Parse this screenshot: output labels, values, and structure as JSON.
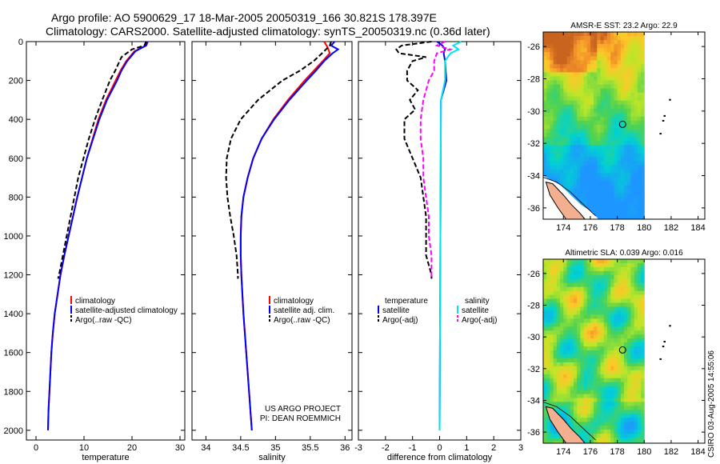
{
  "header": {
    "line1": "Argo profile: AO 5900629_17 18-Mar-2005 20050319_166 30.821S 178.397E",
    "line2": "Climatology: CARS2000. Satellite-adjusted climatology: synTS_20050319.nc (0.36d later)"
  },
  "colors": {
    "climatology": "#ff0000",
    "satellite": "#0000ff",
    "argo": "#000000",
    "temp_argo_adj": "#000000",
    "sal_satellite": "#00e5ee",
    "sal_argo_adj": "#ff00ff"
  },
  "chart_data": [
    {
      "type": "line",
      "name": "temperature-profile",
      "xlabel": "temperature",
      "xlim": [
        -2,
        31
      ],
      "ylim": [
        2050,
        0
      ],
      "xticks": [
        0,
        10,
        20,
        30
      ],
      "yticks": [
        0,
        200,
        400,
        600,
        800,
        1000,
        1200,
        1400,
        1600,
        1800,
        2000
      ],
      "legend": [
        "climatology",
        "satellite-adjusted climatology",
        "Argo(..raw -QC)"
      ],
      "series": [
        {
          "name": "climatology",
          "color": "#ff0000",
          "dash": "",
          "y": [
            0,
            20,
            50,
            100,
            150,
            200,
            300,
            400,
            500,
            600,
            700,
            800,
            900,
            1000,
            1100,
            1200,
            1300,
            1400,
            1500,
            1600,
            1700,
            1800,
            1900,
            2000
          ],
          "x": [
            23.3,
            23.0,
            20.5,
            18.8,
            17.6,
            16.6,
            14.6,
            13.0,
            11.8,
            10.6,
            9.6,
            8.6,
            7.7,
            6.8,
            5.9,
            5.1,
            4.5,
            3.9,
            3.5,
            3.2,
            3.0,
            2.8,
            2.6,
            2.5
          ]
        },
        {
          "name": "satellite-adjusted climatology",
          "color": "#0000ff",
          "dash": "",
          "y": [
            0,
            20,
            50,
            100,
            150,
            200,
            300,
            400,
            500,
            600,
            700,
            800,
            900,
            1000,
            1100,
            1200,
            1300,
            1400,
            1500,
            1600,
            1700,
            1800,
            1900,
            2000
          ],
          "x": [
            23.2,
            22.9,
            20.7,
            19.0,
            17.8,
            16.9,
            14.8,
            13.2,
            11.9,
            10.6,
            9.6,
            8.6,
            7.7,
            6.8,
            5.9,
            5.1,
            4.5,
            3.9,
            3.5,
            3.2,
            3.0,
            2.8,
            2.6,
            2.5
          ]
        },
        {
          "name": "Argo(..raw -QC)",
          "color": "#000000",
          "dash": "6,3",
          "y": [
            0,
            20,
            40,
            80,
            150,
            200,
            300,
            400,
            500,
            600,
            700,
            800,
            900,
            1000,
            1100,
            1200,
            1220
          ],
          "x": [
            22.9,
            22.6,
            20.0,
            17.8,
            16.5,
            15.4,
            13.8,
            12.3,
            11.0,
            9.9,
            8.8,
            8.0,
            7.2,
            6.4,
            5.6,
            4.8,
            4.6
          ]
        }
      ]
    },
    {
      "type": "line",
      "name": "salinity-profile",
      "xlabel": "salinity",
      "xlim": [
        33.8,
        36.1
      ],
      "ylim": [
        2050,
        0
      ],
      "xticks": [
        34,
        34.5,
        35,
        35.5,
        36
      ],
      "xticklabels": [
        "34",
        "34.5",
        "35",
        "35.5",
        "36"
      ],
      "legend": [
        "climatology",
        "satellite adj. clim.",
        "Argo(..raw -QC)"
      ],
      "annotation": [
        "US ARGO PROJECT",
        "PI: DEAN ROEMMICH"
      ],
      "series": [
        {
          "name": "climatology",
          "color": "#ff0000",
          "dash": "",
          "y": [
            0,
            30,
            60,
            100,
            150,
            200,
            300,
            400,
            500,
            600,
            700,
            800,
            900,
            1000,
            1100,
            1200,
            1400,
            1600,
            1800,
            2000
          ],
          "x": [
            35.7,
            35.75,
            35.78,
            35.68,
            35.55,
            35.42,
            35.18,
            34.97,
            34.8,
            34.68,
            34.6,
            34.54,
            34.51,
            34.5,
            34.5,
            34.51,
            34.54,
            34.58,
            34.62,
            34.66
          ]
        },
        {
          "name": "satellite adj. clim.",
          "color": "#0000ff",
          "dash": "",
          "y": [
            0,
            20,
            40,
            60,
            100,
            150,
            200,
            300,
            400,
            500,
            600,
            700,
            800,
            900,
            1000,
            1100,
            1200,
            1400,
            1600,
            1800,
            2000
          ],
          "x": [
            35.85,
            35.8,
            35.9,
            35.82,
            35.7,
            35.58,
            35.45,
            35.2,
            34.98,
            34.8,
            34.68,
            34.6,
            34.54,
            34.51,
            34.5,
            34.5,
            34.51,
            34.54,
            34.58,
            34.62,
            34.66
          ]
        },
        {
          "name": "Argo(..raw -QC)",
          "color": "#000000",
          "dash": "6,3",
          "y": [
            0,
            20,
            50,
            100,
            150,
            200,
            300,
            400,
            500,
            600,
            700,
            800,
            900,
            1000,
            1100,
            1200,
            1220
          ],
          "x": [
            35.8,
            35.78,
            35.7,
            35.55,
            35.35,
            35.1,
            34.75,
            34.5,
            34.36,
            34.3,
            34.29,
            34.31,
            34.35,
            34.4,
            34.44,
            34.46,
            34.46
          ]
        }
      ]
    },
    {
      "type": "line",
      "name": "difference-profile",
      "xlabel": "difference from climatology",
      "xlim": [
        -3,
        3
      ],
      "ylim": [
        2050,
        0
      ],
      "xticks": [
        -3,
        -2,
        -1,
        0,
        1,
        2,
        3
      ],
      "legend_left": {
        "title": "temperature",
        "entries": [
          "satellite",
          "Argo(-adj)"
        ]
      },
      "legend_right": {
        "title": "salinity",
        "entries": [
          "satellite",
          "Argo(-adj)"
        ]
      },
      "series": [
        {
          "name": "temperature satellite",
          "color": "#0000ff",
          "dash": "",
          "y": [
            0,
            20,
            40,
            60,
            100,
            200,
            300,
            2000
          ],
          "x": [
            -0.1,
            0.1,
            0.2,
            0.15,
            0.2,
            0.25,
            0.05,
            0.0
          ]
        },
        {
          "name": "temperature Argo(-adj)",
          "color": "#000000",
          "dash": "6,3",
          "y": [
            0,
            20,
            40,
            60,
            80,
            100,
            150,
            200,
            250,
            300,
            350,
            400,
            500,
            600,
            700,
            800,
            900,
            1000,
            1100,
            1200,
            1220
          ],
          "x": [
            -0.3,
            -1.4,
            -1.6,
            -1.5,
            -0.5,
            -1.0,
            -1.2,
            -1.2,
            -0.8,
            -1.1,
            -0.9,
            -1.3,
            -1.3,
            -1.0,
            -0.7,
            -0.6,
            -0.5,
            -0.5,
            -0.5,
            -0.3,
            -0.3
          ]
        },
        {
          "name": "salinity satellite",
          "color": "#00e5ee",
          "dash": "",
          "y": [
            0,
            20,
            40,
            60,
            100,
            200,
            300,
            2000
          ],
          "x": [
            0.8,
            0.5,
            0.7,
            0.4,
            0.2,
            0.2,
            0.05,
            0.0
          ]
        },
        {
          "name": "salinity Argo(-adj)",
          "color": "#ff00ff",
          "dash": "6,3",
          "y": [
            0,
            20,
            40,
            60,
            100,
            150,
            200,
            300,
            400,
            500,
            600,
            700,
            800,
            900,
            1000,
            1100,
            1200,
            1220
          ],
          "x": [
            0.2,
            -0.1,
            0.4,
            -0.1,
            -0.2,
            -0.2,
            -0.4,
            -0.6,
            -0.7,
            -0.7,
            -0.6,
            -0.6,
            -0.5,
            -0.4,
            -0.4,
            -0.3,
            -0.3,
            -0.3
          ]
        }
      ]
    },
    {
      "type": "heatmap",
      "name": "sst-map",
      "title": "AMSR-E SST: 23.2 Argo: 22.9",
      "xlim": [
        172.5,
        184.5
      ],
      "ylim": [
        -36.7,
        -25.1
      ],
      "xticks": [
        174,
        176,
        178,
        180,
        182,
        184
      ],
      "yticks": [
        -26,
        -28,
        -30,
        -32,
        -34,
        -36
      ],
      "marker": {
        "lon": 178.397,
        "lat": -30.821
      }
    },
    {
      "type": "heatmap",
      "name": "sla-map",
      "title": "Altimetric SLA: 0.039 Argo: 0.016",
      "xlim": [
        172.5,
        184.5
      ],
      "ylim": [
        -36.7,
        -25.1
      ],
      "xticks": [
        174,
        176,
        178,
        180,
        182,
        184
      ],
      "yticks": [
        -26,
        -28,
        -30,
        -32,
        -34,
        -36
      ],
      "marker": {
        "lon": 178.397,
        "lat": -30.821
      }
    }
  ],
  "footer": {
    "stamp": "CSIRO 03-Aug-2005 14:55:06"
  }
}
